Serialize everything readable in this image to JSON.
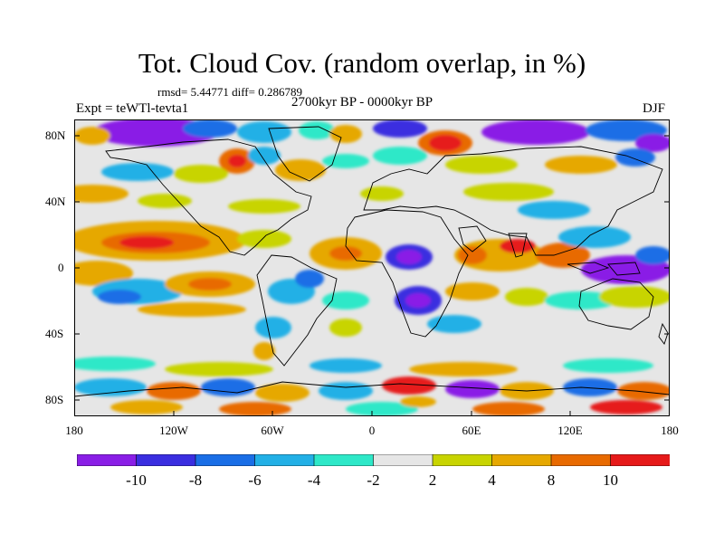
{
  "title": "Tot. Cloud Cov. (random overlap, in %)",
  "stats": "rmsd= 5.44771 diff= 0.286789",
  "experiment": "Expt = teWTl-tevta1",
  "period": "2700kyr BP - 0000kyr BP",
  "season": "DJF",
  "lat_labels": [
    "80N",
    "40N",
    "0",
    "40S",
    "80S"
  ],
  "lon_labels": [
    "180",
    "120W",
    "60W",
    "0",
    "60E",
    "120E",
    "180"
  ],
  "colorbar": {
    "labels": [
      "-10",
      "-8",
      "-6",
      "-4",
      "-2",
      "2",
      "4",
      "8",
      "10"
    ],
    "colors": [
      "#8a1ee6",
      "#3a2ee0",
      "#1a6ee6",
      "#22b0e6",
      "#2ee8c8",
      "#e6e6e6",
      "#c8d400",
      "#e6a800",
      "#e86a00",
      "#e61a1a"
    ]
  }
}
